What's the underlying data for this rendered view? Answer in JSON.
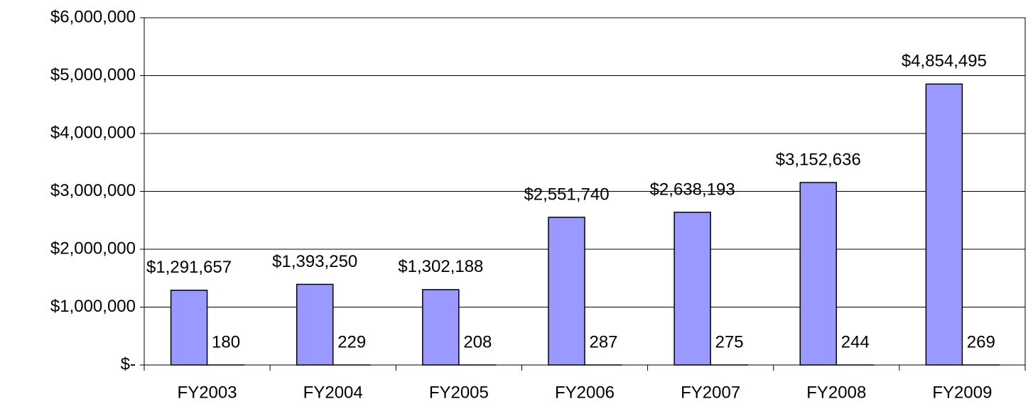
{
  "chart_data": {
    "type": "bar",
    "categories": [
      "FY2003",
      "FY2004",
      "FY2005",
      "FY2006",
      "FY2007",
      "FY2008",
      "FY2009"
    ],
    "series": [
      {
        "color": "#9999ff",
        "values": [
          1291657,
          1393250,
          1302188,
          2551740,
          2638193,
          3152636,
          4854495
        ],
        "value_labels": [
          "$1,291,657",
          "$1,393,250",
          "$1,302,188",
          "$2,551,740",
          "$2,638,193",
          "$3,152,636",
          "$4,854,495"
        ]
      },
      {
        "color": "#993366",
        "values": [
          180,
          229,
          208,
          287,
          275,
          244,
          269
        ]
      }
    ],
    "ylim": [
      0,
      6000000
    ],
    "yticks": [
      {
        "value": 0,
        "label": "$-"
      },
      {
        "value": 1000000,
        "label": "$1,000,000"
      },
      {
        "value": 2000000,
        "label": "$2,000,000"
      },
      {
        "value": 3000000,
        "label": "$3,000,000"
      },
      {
        "value": 4000000,
        "label": "$4,000,000"
      },
      {
        "value": 5000000,
        "label": "$5,000,000"
      },
      {
        "value": 6000000,
        "label": "$6,000,000"
      }
    ],
    "grid": true
  }
}
